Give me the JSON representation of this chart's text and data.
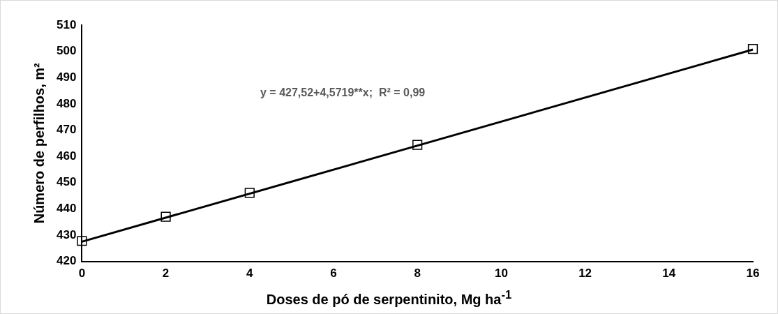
{
  "chart_data": {
    "type": "scatter",
    "xlabel": "Doses de pó de serpentinito, Mg ha$^{-1}$",
    "ylabel": "Número de perfilhos, m²",
    "xlim": [
      0,
      16
    ],
    "ylim": [
      420,
      510
    ],
    "xticks": [
      0,
      2,
      4,
      6,
      8,
      10,
      12,
      14,
      16
    ],
    "yticks": [
      420,
      430,
      440,
      450,
      460,
      470,
      480,
      490,
      500,
      510
    ],
    "grid": false,
    "marker": "square",
    "series": [
      {
        "color": "#000000",
        "x": [
          0,
          2,
          4,
          8,
          16
        ],
        "values": [
          427.8,
          437,
          446.1,
          464.4,
          500.9
        ]
      },
      {
        "type": "line",
        "color": "#000000",
        "x": [
          0,
          16
        ],
        "values": [
          427.5,
          500.7
        ],
        "marker": "none",
        "line_style": "solid"
      }
    ],
    "annotations": [
      "y = 427,52+4,5719**x;  R² = 0,99"
    ]
  }
}
